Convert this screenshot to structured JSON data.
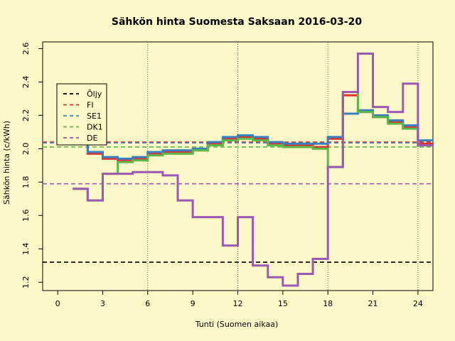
{
  "chart_data": {
    "type": "line",
    "step": true,
    "title": "Sähkön hinta Suomesta Saksaan 2016-03-20",
    "xlabel": "Tunti (Suomen aikaa)",
    "ylabel": "Sähkön hinta (c/kWh)",
    "xlim": [
      -1,
      25
    ],
    "ylim": [
      1.15,
      2.64
    ],
    "xticks": [
      0,
      3,
      6,
      9,
      12,
      15,
      18,
      21,
      24
    ],
    "yticks": [
      1.2,
      1.4,
      1.6,
      1.8,
      2.0,
      2.2,
      2.4,
      2.6
    ],
    "xtick_labels": [
      "0",
      "3",
      "6",
      "9",
      "12",
      "15",
      "18",
      "21",
      "24"
    ],
    "ytick_labels": [
      "1.2",
      "1.4",
      "1.6",
      "1.8",
      "2.0",
      "2.2",
      "2.4",
      "2.6"
    ],
    "vlines": [
      6,
      12,
      18,
      24
    ],
    "grid": false,
    "legend_position": "top-left",
    "x": [
      1,
      2,
      3,
      4,
      5,
      6,
      7,
      8,
      9,
      10,
      11,
      12,
      13,
      14,
      15,
      16,
      17,
      18,
      19,
      20,
      21,
      22,
      23,
      24
    ],
    "series": [
      {
        "name": "Öljy",
        "style": "dashed",
        "color": "#000000",
        "values": [
          1.32,
          1.32,
          1.32,
          1.32,
          1.32,
          1.32,
          1.32,
          1.32,
          1.32,
          1.32,
          1.32,
          1.32,
          1.32,
          1.32,
          1.32,
          1.32,
          1.32,
          1.32,
          1.32,
          1.32,
          1.32,
          1.32,
          1.32,
          1.32
        ]
      },
      {
        "name": "FI",
        "style": "dashed",
        "color": "#e03030",
        "values": [
          2.04,
          2.04,
          2.04,
          2.04,
          2.04,
          2.04,
          2.04,
          2.04,
          2.04,
          2.04,
          2.04,
          2.04,
          2.04,
          2.04,
          2.04,
          2.04,
          2.04,
          2.04,
          2.04,
          2.04,
          2.04,
          2.04,
          2.04,
          2.04
        ]
      },
      {
        "name": "SE1",
        "style": "dashed",
        "color": "#3a7fc0",
        "values": [
          2.035,
          2.035,
          2.035,
          2.035,
          2.035,
          2.035,
          2.035,
          2.035,
          2.035,
          2.035,
          2.035,
          2.035,
          2.035,
          2.035,
          2.035,
          2.035,
          2.035,
          2.035,
          2.035,
          2.035,
          2.035,
          2.035,
          2.035,
          2.035
        ]
      },
      {
        "name": "DK1",
        "style": "dashed",
        "color": "#5cb84a",
        "values": [
          2.01,
          2.01,
          2.01,
          2.01,
          2.01,
          2.01,
          2.01,
          2.01,
          2.01,
          2.01,
          2.01,
          2.01,
          2.01,
          2.01,
          2.01,
          2.01,
          2.01,
          2.01,
          2.01,
          2.01,
          2.01,
          2.01,
          2.01,
          2.01
        ]
      },
      {
        "name": "DE",
        "style": "dashed",
        "color": "#9b59b6",
        "values": [
          1.79,
          1.79,
          1.79,
          1.79,
          1.79,
          1.79,
          1.79,
          1.79,
          1.79,
          1.79,
          1.79,
          1.79,
          1.79,
          1.79,
          1.79,
          1.79,
          1.79,
          1.79,
          1.79,
          1.79,
          1.79,
          1.79,
          1.79,
          1.79
        ]
      },
      {
        "name": "FI",
        "style": "step",
        "color": "#e03030",
        "values": [
          2.04,
          1.97,
          1.94,
          1.93,
          1.94,
          1.97,
          1.98,
          1.98,
          1.99,
          2.03,
          2.06,
          2.07,
          2.06,
          2.03,
          2.02,
          2.02,
          2.01,
          2.06,
          2.32,
          2.22,
          2.19,
          2.16,
          2.13,
          2.03
        ]
      },
      {
        "name": "SE1",
        "style": "step",
        "color": "#3a7fc0",
        "values": [
          2.04,
          1.98,
          1.95,
          1.94,
          1.95,
          1.98,
          1.99,
          1.99,
          2.0,
          2.04,
          2.07,
          2.08,
          2.07,
          2.04,
          2.03,
          2.03,
          2.03,
          2.07,
          2.21,
          2.23,
          2.2,
          2.17,
          2.14,
          2.05
        ]
      },
      {
        "name": "DK1",
        "style": "step",
        "color": "#5cb84a",
        "values": [
          1.76,
          1.69,
          1.85,
          1.92,
          1.93,
          1.96,
          1.97,
          1.97,
          1.99,
          2.02,
          2.05,
          2.06,
          2.05,
          2.02,
          2.01,
          2.01,
          2.0,
          1.89,
          2.34,
          2.22,
          2.19,
          2.15,
          2.12,
          2.02
        ]
      },
      {
        "name": "DE",
        "style": "step",
        "color": "#9b59b6",
        "values": [
          1.76,
          1.69,
          1.85,
          1.85,
          1.86,
          1.86,
          1.84,
          1.69,
          1.59,
          1.59,
          1.42,
          1.59,
          1.3,
          1.23,
          1.18,
          1.25,
          1.34,
          1.89,
          2.34,
          2.57,
          2.25,
          2.22,
          2.39,
          2.02
        ]
      }
    ]
  },
  "legend": [
    {
      "label": "Öljy",
      "color": "#000000"
    },
    {
      "label": "FI",
      "color": "#e03030"
    },
    {
      "label": "SE1",
      "color": "#3a7fc0"
    },
    {
      "label": "DK1",
      "color": "#5cb84a"
    },
    {
      "label": "DE",
      "color": "#9b59b6"
    }
  ]
}
